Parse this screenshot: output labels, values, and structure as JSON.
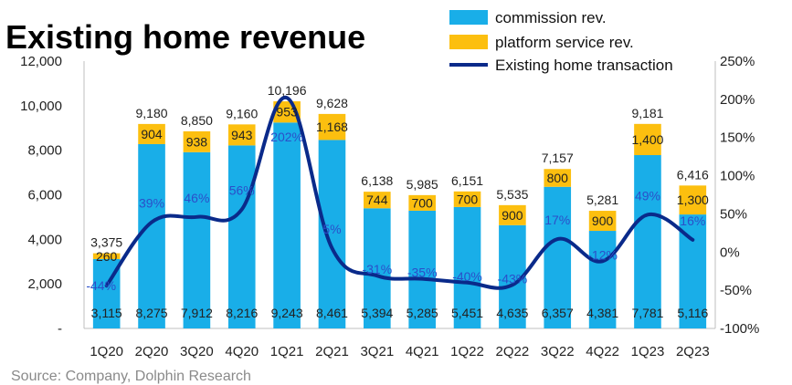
{
  "colors": {
    "commission": "#19aee8",
    "platform": "#fcbf0f",
    "line": "#0a2a8a",
    "pct_label": "#2b4fc9",
    "axis": "#bfbfbf"
  },
  "source": "Source: Company, Dolphin Research",
  "chart_data": {
    "type": "bar",
    "title": "Existing home revenue",
    "categories": [
      "1Q20",
      "2Q20",
      "3Q20",
      "4Q20",
      "1Q21",
      "2Q21",
      "3Q21",
      "4Q21",
      "1Q22",
      "2Q22",
      "3Q22",
      "4Q22",
      "1Q23",
      "2Q23"
    ],
    "series": [
      {
        "name": "commission rev.",
        "values": [
          3115,
          8275,
          7912,
          8216,
          9243,
          8461,
          5394,
          5285,
          5451,
          4635,
          6357,
          4381,
          7781,
          5116
        ]
      },
      {
        "name": "platform service rev.",
        "values": [
          260,
          904,
          938,
          943,
          953,
          1168,
          744,
          700,
          700,
          900,
          800,
          900,
          1400,
          1300
        ]
      }
    ],
    "totals": [
      3375,
      9180,
      8850,
      9160,
      10196,
      9628,
      6138,
      5985,
      6151,
      5535,
      7157,
      5281,
      9181,
      6416
    ],
    "total_labels": [
      "3,375",
      "9,180",
      "8,850",
      "9,160",
      "10,196",
      "9,628",
      "6,138",
      "5,985",
      "6,151",
      "5,535",
      "7,157",
      "5,281",
      "9,181",
      "6,416"
    ],
    "commission_labels": [
      "3,115",
      "8,275",
      "7,912",
      "8,216",
      "9,243",
      "8,461",
      "5,394",
      "5,285",
      "5,451",
      "4,635",
      "6,357",
      "4,381",
      "7,781",
      "5,116"
    ],
    "platform_labels": [
      "260",
      "904",
      "938",
      "943",
      "953",
      "1,168",
      "744",
      "700",
      "700",
      "900",
      "800",
      "900",
      "1,400",
      "1,300"
    ],
    "line_series": {
      "name": "Existing home transaction",
      "values": [
        -44,
        39,
        46,
        56,
        202,
        5,
        -31,
        -35,
        -40,
        -43,
        17,
        -12,
        49,
        16
      ],
      "labels": [
        "-44%",
        "39%",
        "46%",
        "56%",
        "202%",
        "5%",
        "-31%",
        "-35%",
        "-40%",
        "-43%",
        "17%",
        "-12%",
        "49%",
        "16%"
      ]
    },
    "y_left": {
      "min": 0,
      "max": 12000,
      "ticks": [
        "-",
        "2,000",
        "4,000",
        "6,000",
        "8,000",
        "10,000",
        "12,000"
      ]
    },
    "y_right": {
      "min": -100,
      "max": 250,
      "ticks": [
        "-100%",
        "-50%",
        "0%",
        "50%",
        "100%",
        "150%",
        "200%",
        "250%"
      ]
    },
    "legend": {
      "position": "top-right",
      "items": [
        "commission rev.",
        "platform service rev.",
        "Existing home transaction"
      ]
    },
    "stacked": true,
    "grid": false
  }
}
